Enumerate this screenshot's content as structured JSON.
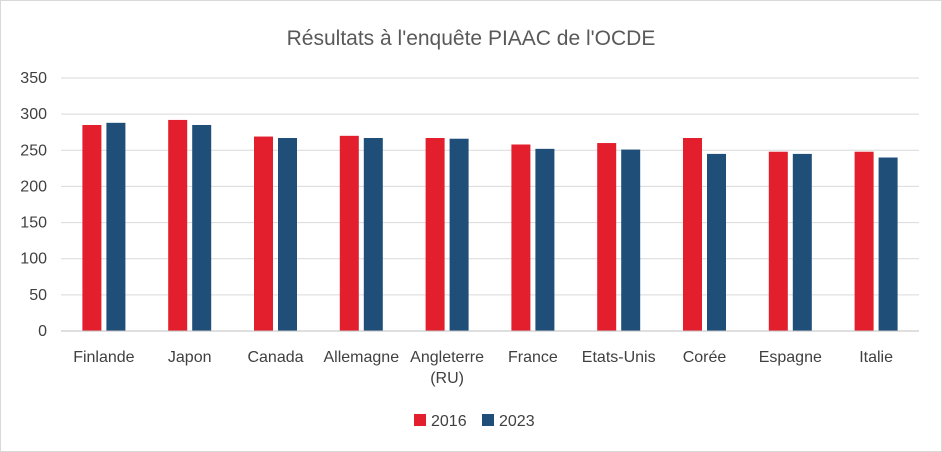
{
  "chart_data": {
    "type": "bar",
    "title": "Résultats à l'enquête PIAAC de l'OCDE",
    "xlabel": "",
    "ylabel": "",
    "ylim": [
      0,
      350
    ],
    "yticks": [
      "0",
      "50",
      "100",
      "150",
      "200",
      "250",
      "300",
      "350"
    ],
    "categories": [
      "Finlande",
      "Japon",
      "Canada",
      "Allemagne",
      "Angleterre (RU)",
      "France",
      "Etats-Unis",
      "Corée",
      "Espagne",
      "Italie"
    ],
    "series": [
      {
        "name": "2016",
        "color": "#e31e2d",
        "values": [
          285,
          292,
          269,
          270,
          267,
          258,
          260,
          267,
          248,
          248
        ]
      },
      {
        "name": "2023",
        "color": "#1f4e79",
        "values": [
          288,
          285,
          267,
          267,
          266,
          252,
          251,
          245,
          245,
          240
        ]
      }
    ],
    "grid": true,
    "legend_position": "bottom"
  }
}
